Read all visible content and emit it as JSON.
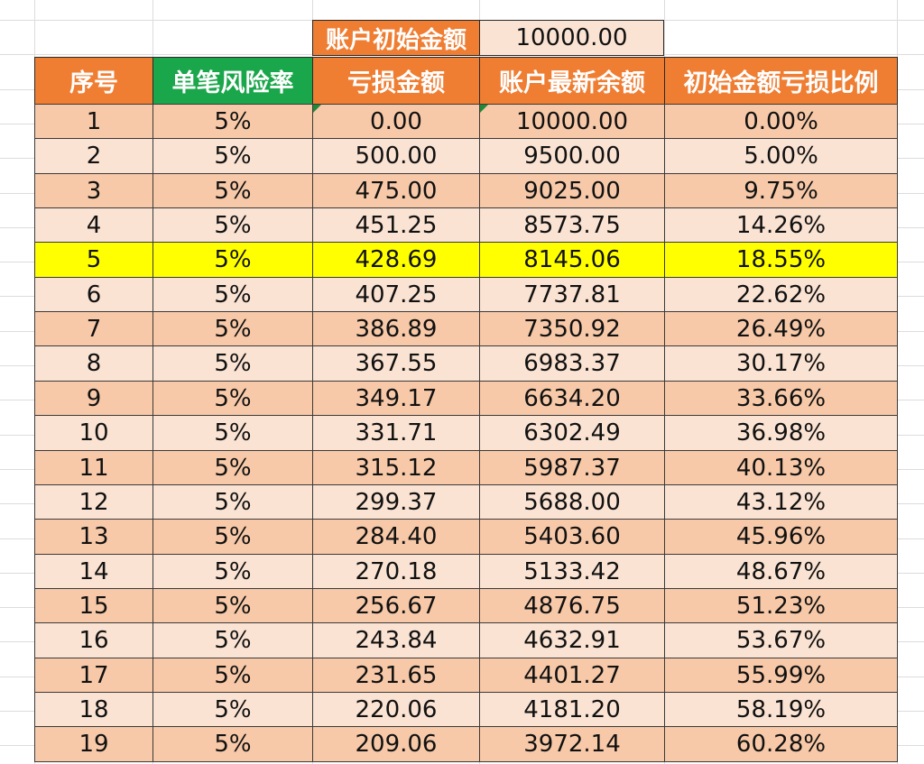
{
  "initial_amount": {
    "label": "账户初始金额",
    "value": "10000.00"
  },
  "headers": [
    "序号",
    "单笔风险率",
    "亏损金额",
    "账户最新余额",
    "初始金额亏损比例"
  ],
  "highlight_row": 5,
  "rows": [
    [
      "1",
      "5%",
      "0.00",
      "10000.00",
      "0.00%"
    ],
    [
      "2",
      "5%",
      "500.00",
      "9500.00",
      "5.00%"
    ],
    [
      "3",
      "5%",
      "475.00",
      "9025.00",
      "9.75%"
    ],
    [
      "4",
      "5%",
      "451.25",
      "8573.75",
      "14.26%"
    ],
    [
      "5",
      "5%",
      "428.69",
      "8145.06",
      "18.55%"
    ],
    [
      "6",
      "5%",
      "407.25",
      "7737.81",
      "22.62%"
    ],
    [
      "7",
      "5%",
      "386.89",
      "7350.92",
      "26.49%"
    ],
    [
      "8",
      "5%",
      "367.55",
      "6983.37",
      "30.17%"
    ],
    [
      "9",
      "5%",
      "349.17",
      "6634.20",
      "33.66%"
    ],
    [
      "10",
      "5%",
      "331.71",
      "6302.49",
      "36.98%"
    ],
    [
      "11",
      "5%",
      "315.12",
      "5987.37",
      "40.13%"
    ],
    [
      "12",
      "5%",
      "299.37",
      "5688.00",
      "43.12%"
    ],
    [
      "13",
      "5%",
      "284.40",
      "5403.60",
      "45.96%"
    ],
    [
      "14",
      "5%",
      "270.18",
      "5133.42",
      "48.67%"
    ],
    [
      "15",
      "5%",
      "256.67",
      "4876.75",
      "51.23%"
    ],
    [
      "16",
      "5%",
      "243.84",
      "4632.91",
      "53.67%"
    ],
    [
      "17",
      "5%",
      "231.65",
      "4401.27",
      "55.99%"
    ],
    [
      "18",
      "5%",
      "220.06",
      "4181.20",
      "58.19%"
    ],
    [
      "19",
      "5%",
      "209.06",
      "3972.14",
      "60.28%"
    ]
  ],
  "colors": {
    "header_orange": "#ef7d32",
    "header_green": "#1aa64a",
    "row_dark": "#f7c9a8",
    "row_light": "#fbe3d3",
    "highlight": "#ffff00"
  }
}
